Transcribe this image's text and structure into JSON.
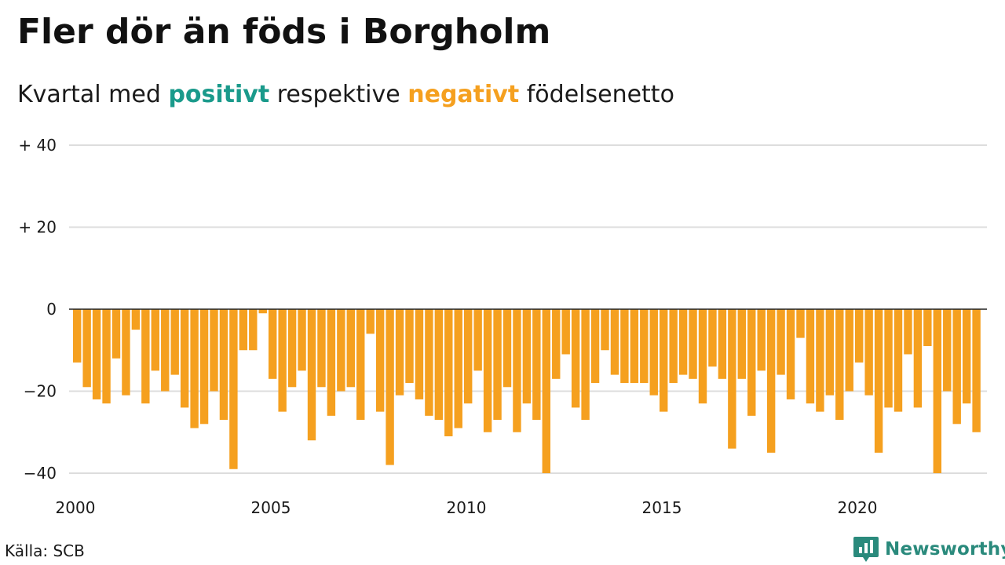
{
  "header": {
    "title": "Fler dör än föds i Borgholm",
    "subtitle_prefix": "Kvartal med",
    "subtitle_positive": "positivt",
    "subtitle_middle": "respektive",
    "subtitle_negative": "negativt",
    "subtitle_suffix": "födelsenetto"
  },
  "footer": {
    "source": "Källa: SCB",
    "brand": "Newsworthy"
  },
  "colors": {
    "positive": "#1a9a8b",
    "negative": "#f5a01f",
    "grid": "#dddddd",
    "zero_line": "#222222",
    "brand": "#2a8a7c"
  },
  "icons": {
    "logo": "bar-chart-speech-bubble-icon"
  },
  "chart_data": {
    "type": "bar",
    "title": "Fler dör än föds i Borgholm",
    "subtitle": "Kvartal med positivt respektive negativt födelsenetto",
    "xlabel": "",
    "ylabel": "",
    "ylim": [
      -40,
      40
    ],
    "grid": true,
    "legend": "none",
    "x_start": 2000,
    "periods_per_year": 4,
    "yticks": [
      {
        "value": 40,
        "label": "+ 40"
      },
      {
        "value": 20,
        "label": "+ 20"
      },
      {
        "value": 0,
        "label": "0"
      },
      {
        "value": -20,
        "label": "−20"
      },
      {
        "value": -40,
        "label": "−40"
      }
    ],
    "xticks": [
      {
        "value": 2000,
        "label": "2000"
      },
      {
        "value": 2005,
        "label": "2005"
      },
      {
        "value": 2010,
        "label": "2010"
      },
      {
        "value": 2015,
        "label": "2015"
      },
      {
        "value": 2020,
        "label": "2020"
      }
    ],
    "values": [
      -13,
      -19,
      -22,
      -23,
      -12,
      -21,
      -5,
      -23,
      -15,
      -20,
      -16,
      -24,
      -29,
      -28,
      -20,
      -27,
      -39,
      -10,
      -10,
      -1,
      -17,
      -25,
      -19,
      -15,
      -32,
      -19,
      -26,
      -20,
      -19,
      -27,
      -6,
      -25,
      -38,
      -21,
      -18,
      -22,
      -26,
      -27,
      -31,
      -29,
      -23,
      -15,
      -30,
      -27,
      -19,
      -30,
      -23,
      -27,
      -40,
      -17,
      -11,
      -24,
      -27,
      -18,
      -10,
      -16,
      -18,
      -18,
      -18,
      -21,
      -25,
      -18,
      -16,
      -17,
      -23,
      -14,
      -17,
      -34,
      -17,
      -26,
      -15,
      -35,
      -16,
      -22,
      -7,
      -23,
      -25,
      -21,
      -27,
      -20,
      -13,
      -21,
      -35,
      -24,
      -25,
      -11,
      -24,
      -9,
      -40,
      -20,
      -28,
      -23,
      -30
    ]
  }
}
